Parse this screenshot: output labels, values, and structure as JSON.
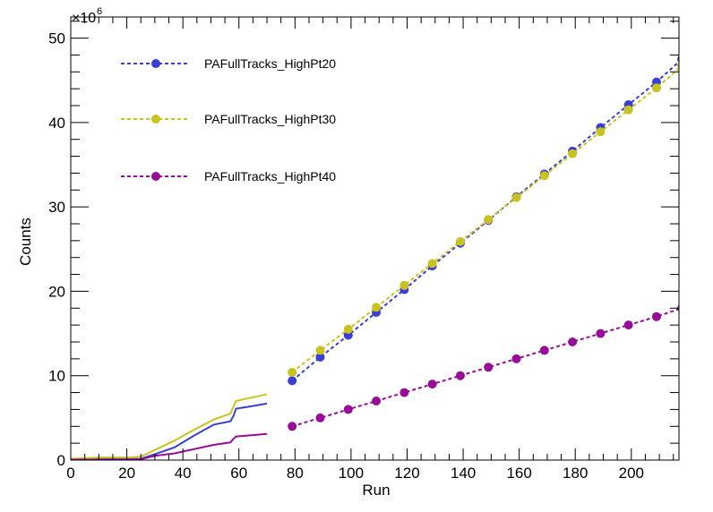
{
  "chart_data": {
    "type": "line",
    "xlabel": "Run",
    "ylabel": "Counts",
    "y_multiplier": {
      "base": "×10",
      "exponent": "6"
    },
    "xlim": [
      0,
      217
    ],
    "ylim": [
      0,
      52.5
    ],
    "x_ticks": [
      0,
      20,
      40,
      60,
      80,
      100,
      120,
      140,
      160,
      180,
      200
    ],
    "y_ticks": [
      0,
      10,
      20,
      30,
      40,
      50
    ],
    "legend_position": "top-left",
    "grid": false,
    "series": [
      {
        "name": "PAFullTracks_HighPt20",
        "color": "#3a3fd1",
        "style": "dashed-markers",
        "x": [
          79,
          89,
          99,
          109,
          119,
          129,
          139,
          149,
          159,
          169,
          179,
          189,
          199,
          209,
          218
        ],
        "y": [
          9.4,
          12.2,
          14.8,
          17.5,
          20.2,
          23.0,
          25.7,
          28.4,
          31.2,
          33.9,
          36.6,
          39.4,
          42.1,
          44.8,
          47.5
        ]
      },
      {
        "name": "PAFullTracks_HighPt30",
        "color": "#c9c31f",
        "style": "dashed-markers",
        "x": [
          79,
          89,
          99,
          109,
          119,
          129,
          139,
          149,
          159,
          169,
          179,
          189,
          199,
          209,
          218
        ],
        "y": [
          10.4,
          13.0,
          15.5,
          18.1,
          20.7,
          23.3,
          25.9,
          28.5,
          31.1,
          33.7,
          36.3,
          38.9,
          41.5,
          44.1,
          46.7
        ]
      },
      {
        "name": "PAFullTracks_HighPt40",
        "color": "#980d98",
        "style": "dashed-markers",
        "x": [
          79,
          89,
          99,
          109,
          119,
          129,
          139,
          149,
          159,
          169,
          179,
          189,
          199,
          209,
          218
        ],
        "y": [
          4.0,
          5.0,
          6.0,
          7.0,
          8.0,
          9.0,
          10.0,
          11.0,
          12.0,
          13.0,
          14.0,
          15.0,
          16.0,
          17.0,
          18.0
        ]
      }
    ],
    "solid_curves": [
      {
        "color": "#3a3fd1",
        "x": [
          0,
          10,
          20,
          25,
          30,
          37,
          44,
          51,
          57,
          58,
          59,
          63,
          70
        ],
        "y": [
          0.1,
          0.1,
          0.1,
          0.15,
          0.7,
          1.5,
          2.9,
          4.2,
          4.6,
          5.2,
          6.1,
          6.3,
          6.7
        ]
      },
      {
        "color": "#c9c31f",
        "x": [
          0,
          10,
          20,
          25,
          30,
          37,
          44,
          51,
          57,
          58,
          59,
          63,
          70
        ],
        "y": [
          0.15,
          0.3,
          0.3,
          0.4,
          1.2,
          2.3,
          3.6,
          4.8,
          5.5,
          6.3,
          7.0,
          7.3,
          7.8
        ]
      },
      {
        "color": "#980d98",
        "x": [
          0,
          10,
          20,
          25,
          30,
          37,
          44,
          51,
          57,
          58,
          59,
          63,
          70
        ],
        "y": [
          0.05,
          0.05,
          0.05,
          0.1,
          0.5,
          0.8,
          1.3,
          1.8,
          2.1,
          2.5,
          2.8,
          2.9,
          3.1
        ]
      }
    ]
  }
}
